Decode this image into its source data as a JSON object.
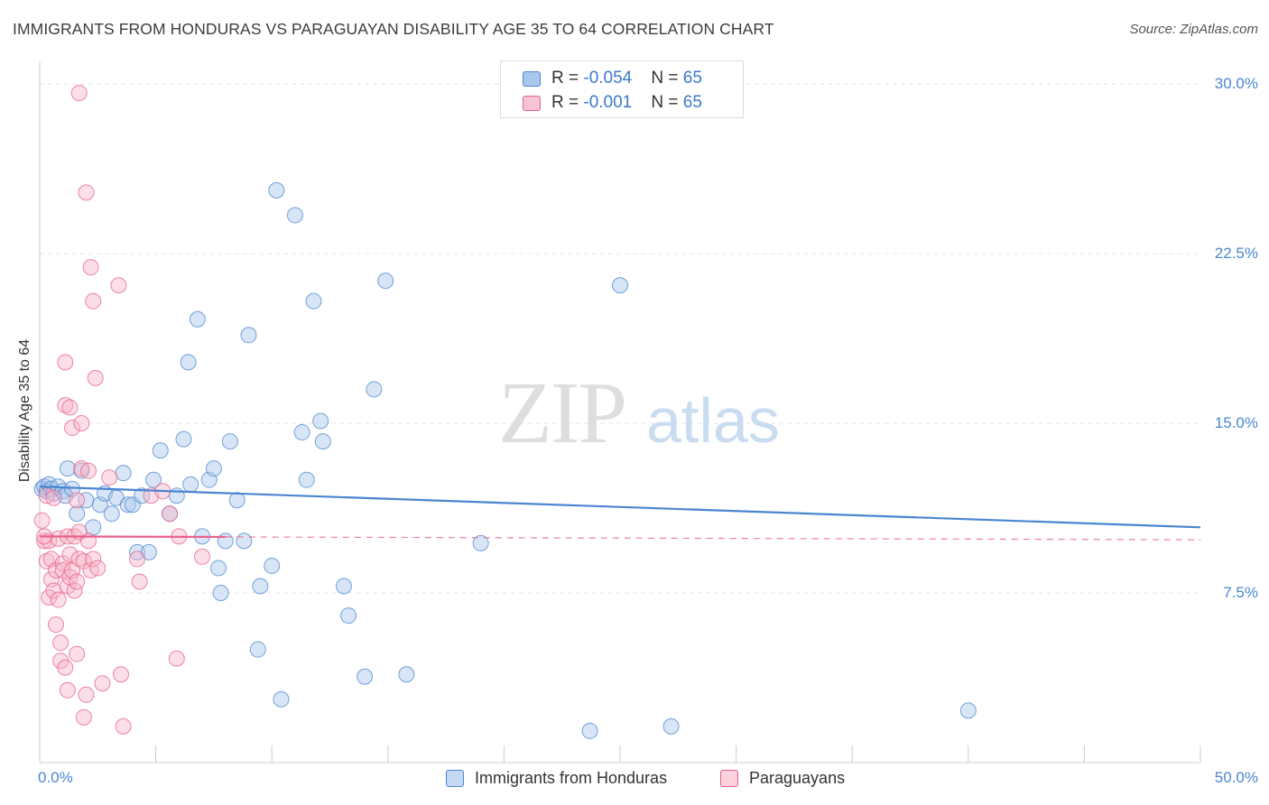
{
  "chart_data": {
    "type": "scatter",
    "title": "IMMIGRANTS FROM HONDURAS VS PARAGUAYAN DISABILITY AGE 35 TO 64 CORRELATION CHART",
    "source": "Source: ZipAtlas.com",
    "watermark": {
      "zip": "ZIP",
      "atlas": "atlas"
    },
    "ylabel": "Disability Age 35 to 64",
    "xlim": [
      0,
      50
    ],
    "ylim": [
      0,
      31
    ],
    "x_tick_labels": {
      "left": "0.0%",
      "right": "50.0%"
    },
    "y_ticks": [
      {
        "value": 7.5,
        "label": "7.5%"
      },
      {
        "value": 15,
        "label": "15.0%"
      },
      {
        "value": 22.5,
        "label": "22.5%"
      },
      {
        "value": 30,
        "label": "30.0%"
      }
    ],
    "grid": true,
    "legend": [
      {
        "r_label": "R = ",
        "r_value": "-0.054",
        "n_label": "N = ",
        "n_value": "65"
      },
      {
        "r_label": "R = ",
        "r_value": "-0.001",
        "n_label": "N = ",
        "n_value": "65"
      }
    ],
    "series": [
      {
        "name": "Immigrants from Honduras",
        "color": "#4a86d0",
        "fill": "#a9c6ec",
        "trend": {
          "x0": 0,
          "y0": 12.2,
          "x1": 50,
          "y1": 10.4,
          "dashed_from": null
        },
        "points": [
          [
            0.1,
            12.1
          ],
          [
            0.2,
            12.2
          ],
          [
            0.3,
            12.0
          ],
          [
            0.4,
            12.3
          ],
          [
            0.5,
            12.1
          ],
          [
            0.6,
            11.9
          ],
          [
            0.8,
            12.2
          ],
          [
            1.0,
            12.0
          ],
          [
            1.1,
            11.8
          ],
          [
            1.2,
            13.0
          ],
          [
            1.4,
            12.1
          ],
          [
            1.6,
            11.0
          ],
          [
            1.8,
            12.9
          ],
          [
            2.0,
            11.6
          ],
          [
            2.3,
            10.4
          ],
          [
            2.6,
            11.4
          ],
          [
            2.8,
            11.9
          ],
          [
            3.1,
            11.0
          ],
          [
            3.3,
            11.7
          ],
          [
            3.6,
            12.8
          ],
          [
            3.8,
            11.4
          ],
          [
            4.0,
            11.4
          ],
          [
            4.2,
            9.3
          ],
          [
            4.4,
            11.8
          ],
          [
            4.7,
            9.3
          ],
          [
            4.9,
            12.5
          ],
          [
            5.2,
            13.8
          ],
          [
            5.6,
            11.0
          ],
          [
            5.9,
            11.8
          ],
          [
            6.2,
            14.3
          ],
          [
            6.4,
            17.7
          ],
          [
            6.5,
            12.3
          ],
          [
            6.8,
            19.6
          ],
          [
            7.0,
            10.0
          ],
          [
            7.3,
            12.5
          ],
          [
            7.5,
            13.0
          ],
          [
            7.7,
            8.6
          ],
          [
            7.8,
            7.5
          ],
          [
            8.0,
            9.8
          ],
          [
            8.2,
            14.2
          ],
          [
            8.5,
            11.6
          ],
          [
            8.8,
            9.8
          ],
          [
            9.0,
            18.9
          ],
          [
            9.4,
            5.0
          ],
          [
            9.5,
            7.8
          ],
          [
            10.0,
            8.7
          ],
          [
            10.2,
            25.3
          ],
          [
            10.4,
            2.8
          ],
          [
            11.0,
            24.2
          ],
          [
            11.3,
            14.6
          ],
          [
            11.5,
            12.5
          ],
          [
            11.8,
            20.4
          ],
          [
            12.1,
            15.1
          ],
          [
            12.2,
            14.2
          ],
          [
            13.1,
            7.8
          ],
          [
            13.3,
            6.5
          ],
          [
            14.0,
            3.8
          ],
          [
            14.4,
            16.5
          ],
          [
            14.9,
            21.3
          ],
          [
            15.8,
            3.9
          ],
          [
            19.0,
            9.7
          ],
          [
            23.7,
            1.4
          ],
          [
            25.0,
            21.1
          ],
          [
            27.2,
            1.6
          ],
          [
            40.0,
            2.3
          ]
        ]
      },
      {
        "name": "Paraguayans",
        "color": "#e8608a",
        "fill": "#f6b5ca",
        "trend": {
          "x0": 0,
          "y0": 10.0,
          "x1": 50,
          "y1": 9.85,
          "dashed_from": 8
        },
        "points": [
          [
            0.1,
            10.7
          ],
          [
            0.2,
            9.8
          ],
          [
            0.3,
            8.9
          ],
          [
            0.3,
            11.8
          ],
          [
            0.4,
            9.8
          ],
          [
            0.4,
            7.3
          ],
          [
            0.5,
            9.0
          ],
          [
            0.5,
            8.1
          ],
          [
            0.6,
            11.7
          ],
          [
            0.6,
            7.6
          ],
          [
            0.7,
            6.1
          ],
          [
            0.7,
            8.5
          ],
          [
            0.8,
            9.9
          ],
          [
            0.8,
            7.2
          ],
          [
            0.9,
            5.3
          ],
          [
            0.9,
            4.5
          ],
          [
            1.0,
            8.8
          ],
          [
            1.0,
            8.5
          ],
          [
            1.1,
            17.7
          ],
          [
            1.1,
            15.8
          ],
          [
            1.1,
            4.2
          ],
          [
            1.2,
            10.0
          ],
          [
            1.2,
            7.8
          ],
          [
            1.2,
            3.2
          ],
          [
            1.3,
            15.7
          ],
          [
            1.3,
            9.2
          ],
          [
            1.3,
            8.2
          ],
          [
            1.4,
            14.8
          ],
          [
            1.4,
            8.5
          ],
          [
            1.5,
            10.0
          ],
          [
            1.5,
            7.6
          ],
          [
            1.6,
            8.0
          ],
          [
            1.6,
            4.8
          ],
          [
            1.7,
            10.2
          ],
          [
            1.7,
            9.0
          ],
          [
            1.8,
            13.0
          ],
          [
            1.8,
            15.0
          ],
          [
            1.9,
            8.9
          ],
          [
            1.9,
            2.0
          ],
          [
            2.0,
            25.2
          ],
          [
            2.0,
            3.0
          ],
          [
            2.1,
            12.9
          ],
          [
            2.1,
            9.8
          ],
          [
            2.2,
            21.9
          ],
          [
            2.2,
            8.5
          ],
          [
            2.3,
            20.4
          ],
          [
            2.3,
            9.0
          ],
          [
            2.4,
            17.0
          ],
          [
            2.5,
            8.6
          ],
          [
            2.7,
            3.5
          ],
          [
            3.0,
            12.6
          ],
          [
            3.4,
            21.1
          ],
          [
            3.5,
            3.9
          ],
          [
            3.6,
            1.6
          ],
          [
            4.2,
            9.0
          ],
          [
            4.3,
            8.0
          ],
          [
            4.8,
            11.8
          ],
          [
            5.3,
            12.0
          ],
          [
            5.6,
            11.0
          ],
          [
            5.9,
            4.6
          ],
          [
            6.0,
            10.0
          ],
          [
            7.0,
            9.1
          ],
          [
            0.2,
            10.0
          ],
          [
            1.7,
            29.6
          ],
          [
            1.6,
            11.6
          ]
        ]
      }
    ]
  }
}
